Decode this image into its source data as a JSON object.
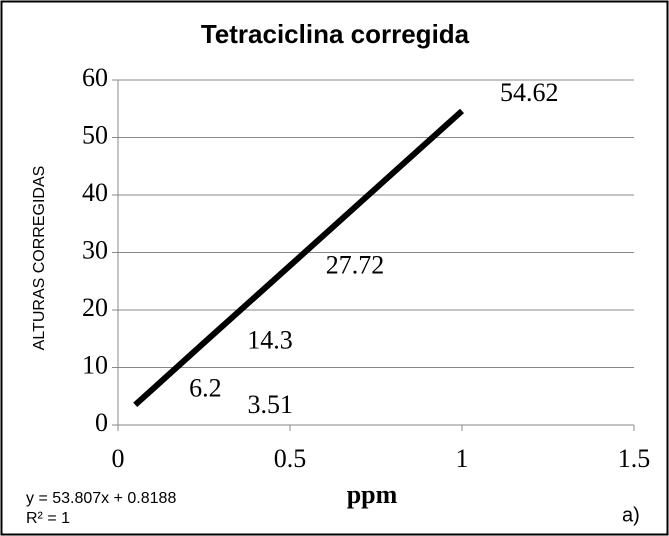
{
  "chart_data": {
    "type": "line",
    "title": "Tetraciclina corregida",
    "x_label": "ppm",
    "y_label": "ALTURAS CORREGIDAS",
    "annotations": [
      "y = 53.807x + 0.8188",
      "R² = 1",
      "a)"
    ],
    "x": [
      0.05,
      0.1,
      0.25,
      0.5,
      1
    ],
    "series": [
      {
        "name": "Tetraciclina",
        "color": "#000000",
        "values": [
          3.51,
          6.2,
          14.3,
          27.72,
          54.62
        ]
      }
    ],
    "xlim": [
      0,
      1.5
    ],
    "xticks": [
      0,
      0.5,
      1,
      1.5
    ],
    "ylim": [
      0,
      60
    ],
    "yticks": [
      0,
      10,
      20,
      30,
      40,
      50,
      60
    ],
    "grid": true
  }
}
